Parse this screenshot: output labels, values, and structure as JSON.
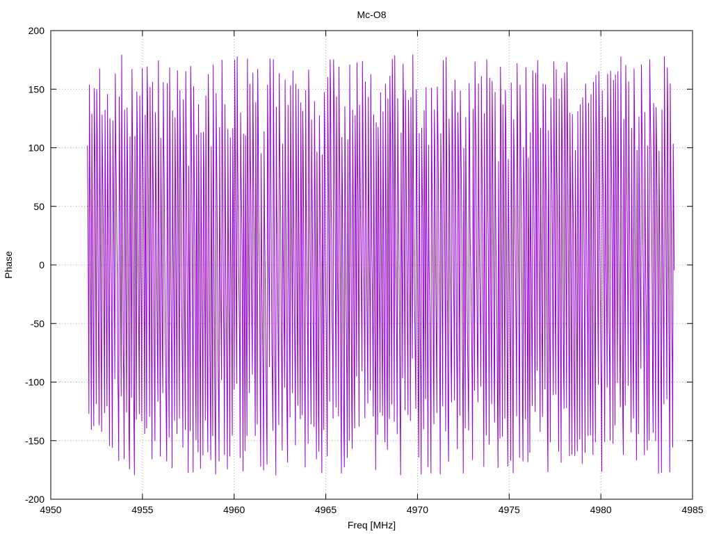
{
  "chart_data": {
    "type": "line",
    "title": "Mc-O8",
    "xlabel": "Freq [MHz]",
    "ylabel": "Phase",
    "xlim": [
      4950,
      4985
    ],
    "ylim": [
      -200,
      200
    ],
    "xticks": [
      4950,
      4955,
      4960,
      4965,
      4970,
      4975,
      4980,
      4985
    ],
    "yticks": [
      -200,
      -150,
      -100,
      -50,
      0,
      50,
      100,
      150,
      200
    ],
    "grid": true,
    "legend": "none",
    "series": [
      {
        "color": "#9400d3",
        "x_start": 4952.0,
        "x_end": 4984.0,
        "n_points": 1200,
        "phase_wrap": [
          -180,
          180
        ],
        "description_values": "phase oscillates rapidly across the full -180 to 180 range, wrapping repeatedly"
      }
    ]
  }
}
